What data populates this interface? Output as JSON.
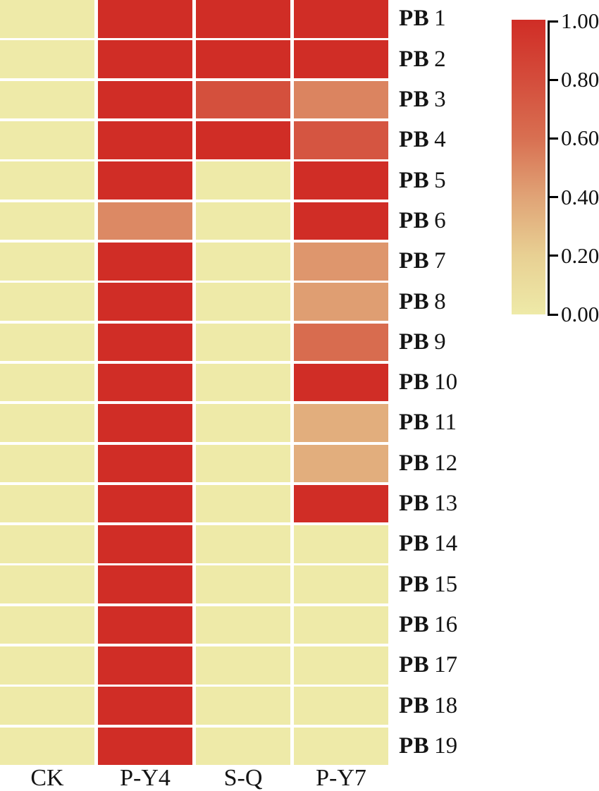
{
  "chart_data": {
    "type": "heatmap",
    "title": "",
    "columns": [
      "CK",
      "P-Y4",
      "S-Q",
      "P-Y7"
    ],
    "rows": [
      "PB1",
      "PB2",
      "PB3",
      "PB4",
      "PB5",
      "PB6",
      "PB7",
      "PB8",
      "PB9",
      "PB10",
      "PB11",
      "PB12",
      "PB13",
      "PB14",
      "PB15",
      "PB16",
      "PB17",
      "PB18",
      "PB19"
    ],
    "values": [
      [
        0,
        1.0,
        1.0,
        1.0
      ],
      [
        0,
        1.0,
        1.0,
        1.0
      ],
      [
        0,
        1.0,
        0.78,
        0.52
      ],
      [
        0,
        1.0,
        1.0,
        0.75
      ],
      [
        0,
        1.0,
        0,
        1.0
      ],
      [
        0,
        0.5,
        0,
        1.0
      ],
      [
        0,
        1.0,
        0,
        0.45
      ],
      [
        0,
        1.0,
        0,
        0.42
      ],
      [
        0,
        1.0,
        0,
        0.62
      ],
      [
        0,
        1.0,
        0,
        1.0
      ],
      [
        0,
        1.0,
        0,
        0.35
      ],
      [
        0,
        1.0,
        0,
        0.35
      ],
      [
        0,
        1.0,
        0,
        1.0
      ],
      [
        0,
        1.0,
        0,
        0
      ],
      [
        0,
        1.0,
        0,
        0
      ],
      [
        0,
        1.0,
        0,
        0
      ],
      [
        0,
        1.0,
        0,
        0
      ],
      [
        0,
        1.0,
        0,
        0
      ],
      [
        0,
        1.0,
        0,
        0
      ]
    ],
    "value_range": [
      0.0,
      1.0
    ],
    "colorbar": {
      "position": "right",
      "orientation": "vertical",
      "tick_labels": [
        "1.00",
        "0.80",
        "0.60",
        "0.40",
        "0.20",
        "0.00"
      ],
      "tick_values": [
        1.0,
        0.8,
        0.6,
        0.4,
        0.2,
        0.0
      ]
    },
    "colors": {
      "gradient_stops": [
        {
          "value": 0.0,
          "hex": "#eeeaa8"
        },
        {
          "value": 0.2,
          "hex": "#e8d093"
        },
        {
          "value": 0.4,
          "hex": "#e0a376"
        },
        {
          "value": 0.6,
          "hex": "#d86f51"
        },
        {
          "value": 0.8,
          "hex": "#d44c3b"
        },
        {
          "value": 1.0,
          "hex": "#d02d26"
        }
      ],
      "cell_gap": "#ffffff",
      "axis_line": "#000000",
      "label_text": "#141414"
    },
    "layout_hints": {
      "grid": "off",
      "cell_borders": "white gaps",
      "row_labels_position": "right",
      "column_labels_position": "bottom"
    }
  }
}
